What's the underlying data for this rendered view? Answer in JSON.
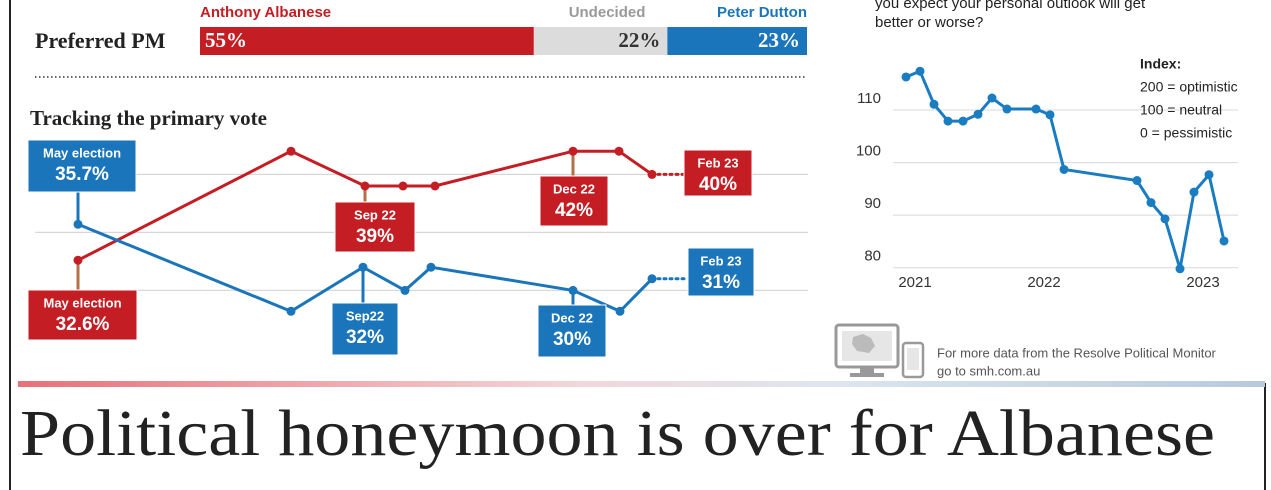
{
  "chart_data": [
    {
      "type": "stacked-bar",
      "title": "Preferred PM",
      "xlim": [
        0,
        100
      ],
      "series": [
        {
          "name": "Anthony Albanese",
          "color": "#c41e24",
          "values": [
            55
          ],
          "value_labels": [
            "55%"
          ]
        },
        {
          "name": "Undecided",
          "color": "#dcdcdc",
          "values": [
            22
          ],
          "value_labels": [
            "22%"
          ]
        },
        {
          "name": "Peter Dutton",
          "color": "#1b75bb",
          "values": [
            23
          ],
          "value_labels": [
            "23%"
          ]
        }
      ]
    },
    {
      "type": "line",
      "title": "Tracking the primary vote",
      "ylim": [
        24,
        44
      ],
      "gridlines": [
        30,
        35,
        40
      ],
      "series": [
        {
          "color": "#c41e24",
          "values": [
            32.6,
            42,
            39,
            39,
            39,
            42,
            42,
            40
          ],
          "callouts": [
            "May election",
            null,
            "Sep 22",
            null,
            null,
            "Dec 22",
            null,
            "Feb 23"
          ],
          "value_labels": [
            "32.6%",
            null,
            "39%",
            null,
            null,
            "42%",
            null,
            "40%"
          ]
        },
        {
          "color": "#1b75bb",
          "values": [
            35.7,
            28.2,
            32,
            30,
            32,
            30,
            28.2,
            31
          ],
          "callouts": [
            "May election",
            null,
            "Sep22",
            null,
            null,
            "Dec 22",
            null,
            "Feb 23"
          ],
          "value_labels": [
            "35.7%",
            null,
            "32%",
            null,
            null,
            "30%",
            null,
            "31%"
          ]
        }
      ]
    },
    {
      "type": "line",
      "title": [
        "you expect your personal outlook will get",
        "better or worse?"
      ],
      "categories": [
        null,
        "2021",
        null,
        null,
        null,
        null,
        null,
        null,
        null,
        "2022",
        null,
        null,
        null,
        null,
        null,
        null,
        "2023",
        null
      ],
      "values": [
        114.2,
        115.3,
        109,
        105.8,
        105.8,
        107.1,
        110.2,
        108.1,
        108.1,
        107,
        96.6,
        94.5,
        90.3,
        87.2,
        77.7,
        92.3,
        95.6,
        83
      ],
      "color": "#1b7dc1",
      "ylim": [
        75,
        118
      ],
      "yticks": [
        80,
        90,
        100,
        110
      ],
      "grid": true,
      "note": [
        "Index:",
        "200 = optimistic",
        "100 = neutral",
        "0 = pessimistic"
      ]
    }
  ],
  "promo": [
    "For more data from the Resolve Political Monitor",
    "go to smh.com.au"
  ],
  "headline": "Political honeymoon is over for Albanese"
}
